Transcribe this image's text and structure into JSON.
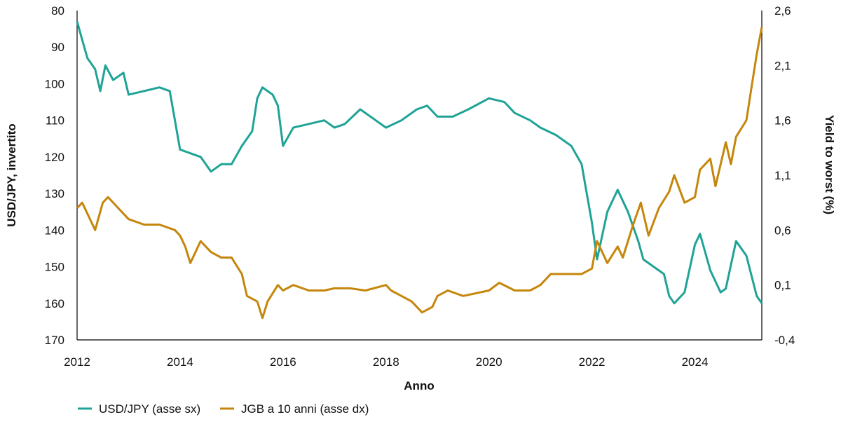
{
  "chart_data": {
    "type": "line",
    "title": "",
    "xlabel": "Anno",
    "ylabel_left": "USD/JPY, invertito",
    "ylabel_right": "Yield to worst (%)",
    "xlim": [
      2012,
      2025.3
    ],
    "ylim_left": [
      170,
      80
    ],
    "ylim_left_inverted": true,
    "ylim_right": [
      -0.4,
      2.6
    ],
    "x_ticks": [
      "2012",
      "2014",
      "2016",
      "2018",
      "2020",
      "2022",
      "2024"
    ],
    "y_ticks_left": [
      "80",
      "90",
      "100",
      "110",
      "120",
      "130",
      "140",
      "150",
      "160",
      "170"
    ],
    "y_ticks_right": [
      "2,6",
      "2,1",
      "1,6",
      "1,1",
      "0,6",
      "0,1",
      "-0,4"
    ],
    "grid": false,
    "legend_position": "bottom-left",
    "colors": {
      "usdjpy": "#1fa396",
      "jgb": "#c5860b",
      "axis": "#000000"
    },
    "series": [
      {
        "name": "USD/JPY (asse sx)",
        "axis": "left",
        "x": [
          2012.0,
          2012.1,
          2012.2,
          2012.35,
          2012.45,
          2012.55,
          2012.7,
          2012.9,
          2013.0,
          2013.3,
          2013.6,
          2013.8,
          2013.9,
          2014.0,
          2014.2,
          2014.4,
          2014.6,
          2014.8,
          2015.0,
          2015.2,
          2015.4,
          2015.5,
          2015.6,
          2015.8,
          2015.9,
          2016.0,
          2016.2,
          2016.5,
          2016.8,
          2017.0,
          2017.2,
          2017.5,
          2017.8,
          2018.0,
          2018.3,
          2018.6,
          2018.8,
          2019.0,
          2019.3,
          2019.6,
          2020.0,
          2020.3,
          2020.5,
          2020.8,
          2021.0,
          2021.3,
          2021.6,
          2021.8,
          2022.0,
          2022.1,
          2022.3,
          2022.5,
          2022.7,
          2022.9,
          2023.0,
          2023.2,
          2023.4,
          2023.5,
          2023.6,
          2023.8,
          2024.0,
          2024.1,
          2024.3,
          2024.5,
          2024.6,
          2024.8,
          2025.0,
          2025.2,
          2025.3
        ],
        "values": [
          83,
          88,
          93,
          96,
          102,
          95,
          99,
          97,
          103,
          102,
          101,
          102,
          110,
          118,
          119,
          120,
          124,
          122,
          122,
          117,
          113,
          104,
          101,
          103,
          106,
          117,
          112,
          111,
          110,
          112,
          111,
          107,
          110,
          112,
          110,
          107,
          106,
          109,
          109,
          107,
          104,
          105,
          108,
          110,
          112,
          114,
          117,
          122,
          138,
          148,
          135,
          129,
          135,
          143,
          148,
          150,
          152,
          158,
          160,
          157,
          144,
          141,
          151,
          157,
          156,
          143,
          147,
          158,
          160
        ]
      },
      {
        "name": "JGB a 10 anni (asse dx)",
        "axis": "right",
        "x": [
          2012.0,
          2012.1,
          2012.2,
          2012.35,
          2012.5,
          2012.6,
          2012.8,
          2013.0,
          2013.3,
          2013.6,
          2013.9,
          2014.0,
          2014.1,
          2014.2,
          2014.4,
          2014.6,
          2014.8,
          2015.0,
          2015.2,
          2015.3,
          2015.5,
          2015.6,
          2015.7,
          2015.9,
          2016.0,
          2016.2,
          2016.5,
          2016.8,
          2017.0,
          2017.3,
          2017.6,
          2018.0,
          2018.1,
          2018.3,
          2018.5,
          2018.7,
          2018.9,
          2019.0,
          2019.2,
          2019.5,
          2020.0,
          2020.2,
          2020.5,
          2020.8,
          2021.0,
          2021.2,
          2021.5,
          2021.8,
          2022.0,
          2022.1,
          2022.3,
          2022.5,
          2022.6,
          2022.8,
          2022.95,
          2023.1,
          2023.3,
          2023.5,
          2023.6,
          2023.8,
          2024.0,
          2024.1,
          2024.3,
          2024.4,
          2024.6,
          2024.7,
          2024.8,
          2025.0,
          2025.1,
          2025.2,
          2025.3
        ],
        "values": [
          0.8,
          0.85,
          0.75,
          0.6,
          0.85,
          0.9,
          0.8,
          0.7,
          0.65,
          0.65,
          0.6,
          0.55,
          0.45,
          0.3,
          0.5,
          0.4,
          0.35,
          0.35,
          0.2,
          0.0,
          -0.05,
          -0.2,
          -0.05,
          0.1,
          0.05,
          0.1,
          0.05,
          0.05,
          0.07,
          0.07,
          0.05,
          0.1,
          0.05,
          0.0,
          -0.05,
          -0.15,
          -0.1,
          0.0,
          0.05,
          0.0,
          0.05,
          0.12,
          0.05,
          0.05,
          0.1,
          0.2,
          0.2,
          0.2,
          0.25,
          0.5,
          0.3,
          0.45,
          0.35,
          0.65,
          0.85,
          0.55,
          0.8,
          0.95,
          1.1,
          0.85,
          0.9,
          1.15,
          1.25,
          1.0,
          1.4,
          1.2,
          1.45,
          1.6,
          1.9,
          2.2,
          2.45
        ]
      }
    ]
  }
}
